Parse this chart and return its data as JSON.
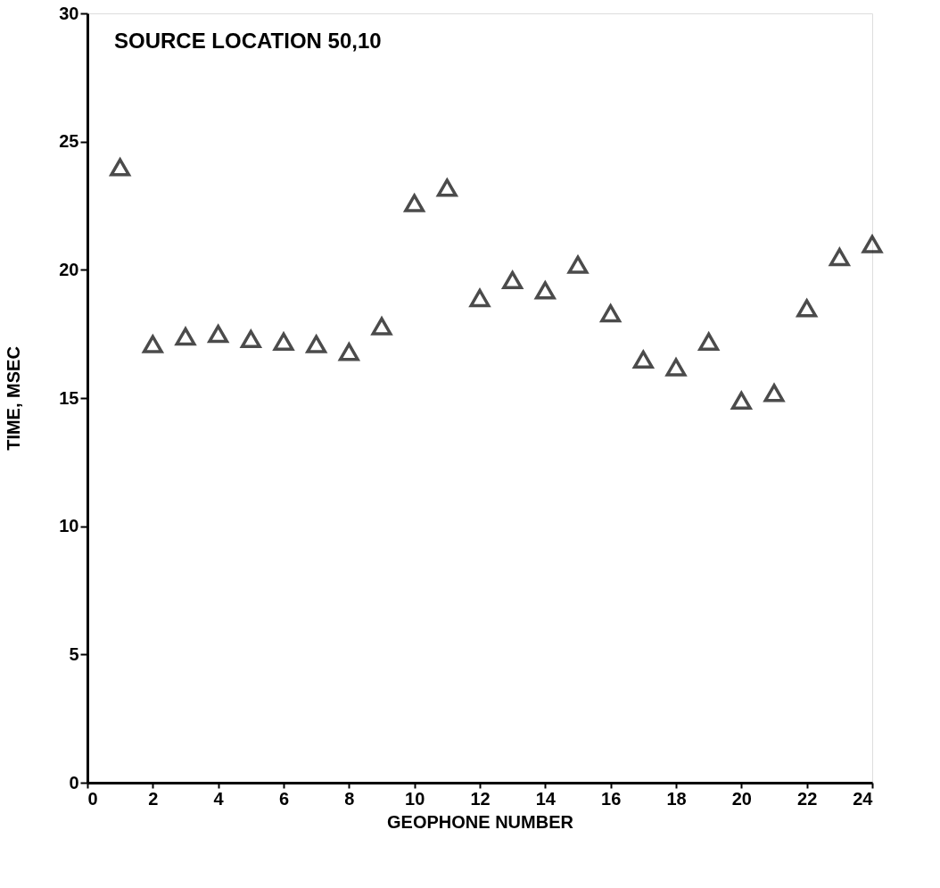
{
  "chart_data": {
    "type": "scatter",
    "xlabel": "GEOPHONE NUMBER",
    "ylabel": "TIME,  MSEC",
    "annotations": [
      "SOURCE LOCATION 50,10"
    ],
    "x": [
      1,
      2,
      3,
      4,
      5,
      6,
      7,
      8,
      9,
      10,
      11,
      12,
      13,
      14,
      15,
      16,
      17,
      18,
      19,
      20,
      21,
      22,
      23,
      24
    ],
    "values": [
      24.0,
      17.1,
      17.4,
      17.5,
      17.3,
      17.2,
      17.1,
      16.8,
      17.8,
      22.6,
      23.2,
      18.9,
      19.6,
      19.2,
      20.2,
      18.3,
      16.5,
      16.2,
      17.2,
      14.9,
      15.2,
      18.5,
      20.5,
      21.0
    ],
    "color": "#000000",
    "marker": "triangle",
    "xlim": [
      0,
      24
    ],
    "xticks": [
      0,
      2,
      4,
      6,
      8,
      10,
      12,
      14,
      16,
      18,
      20,
      22,
      24
    ],
    "ylim": [
      0,
      30
    ],
    "yticks": [
      0,
      5,
      10,
      15,
      20,
      25,
      30
    ],
    "grid": false
  }
}
